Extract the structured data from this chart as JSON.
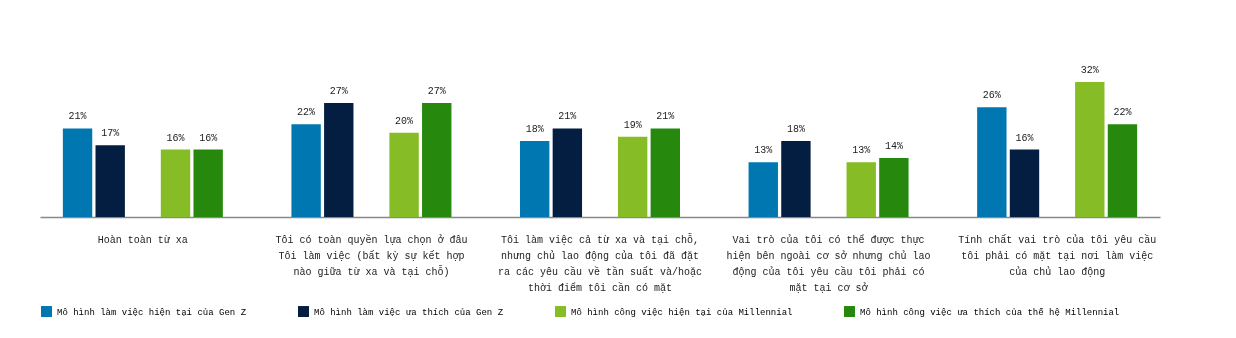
{
  "chart_data": {
    "type": "bar",
    "categories": [
      "Hoàn toàn từ xa",
      "Tôi có toàn quyền lựa chọn ở đâu Tôi làm việc (bất kỳ sự kết hợp nào giữa từ xa và tại chỗ)",
      "Tôi làm việc cả từ xa và tại chỗ, nhưng chủ lao động của tôi đã đặt ra các yêu cầu về tần suất và/hoặc thời điểm tôi cần có mặt",
      "Vai trò của tôi có thể được thực hiện bên ngoài cơ sở nhưng chủ lao động của tôi yêu cầu tôi phải có mặt tại cơ sở",
      "Tính chất vai trò của tôi yêu cầu tôi phải có mặt tại nơi làm việc của chủ lao động"
    ],
    "series": [
      {
        "name": "Mô hình làm việc hiện tại của Gen Z",
        "color": "#0077b0",
        "values": [
          21,
          22,
          18,
          13,
          26
        ],
        "value_labels": [
          "21%",
          "22%",
          "18%",
          "13%",
          "26%"
        ]
      },
      {
        "name": "Mô hình làm việc ưa thích của Gen Z",
        "color": "#041e42",
        "values": [
          17,
          27,
          21,
          18,
          16
        ],
        "value_labels": [
          "17%",
          "27%",
          "21%",
          "18%",
          "16%"
        ]
      },
      {
        "name": "Mô hình công việc hiện tại của Millennial",
        "color": "#86bc25",
        "values": [
          16,
          20,
          19,
          13,
          32
        ],
        "value_labels": [
          "16%",
          "20%",
          "19%",
          "13%",
          "32%"
        ]
      },
      {
        "name": "Mô hình công việc ưa thích của thế hệ Millennial",
        "color": "#26890d",
        "values": [
          16,
          27,
          21,
          14,
          22
        ],
        "value_labels": [
          "16%",
          "27%",
          "21%",
          "14%",
          "22%"
        ]
      }
    ],
    "legend": "bottom",
    "grid": false
  }
}
